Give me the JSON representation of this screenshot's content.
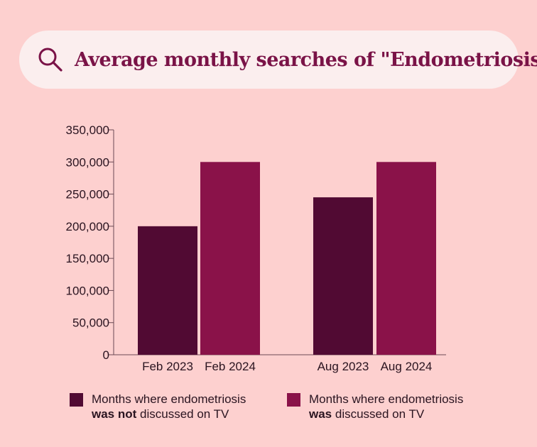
{
  "search": {
    "title": "Average monthly searches of \"Endometriosis\"",
    "icon": "search-icon"
  },
  "chart_data": {
    "type": "bar",
    "title": "Average monthly searches of \"Endometriosis\"",
    "xlabel": "",
    "ylabel": "",
    "ylim": [
      0,
      350000
    ],
    "yticks": [
      0,
      50000,
      100000,
      150000,
      200000,
      250000,
      300000,
      350000
    ],
    "ytick_labels": [
      "0",
      "50,000",
      "100,000",
      "150,000",
      "200,000",
      "250,000",
      "300,000",
      "350,000"
    ],
    "grid": false,
    "legend_position": "bottom",
    "bars": [
      {
        "label": "Feb 2023",
        "value": 200000,
        "series": 0
      },
      {
        "label": "Feb 2024",
        "value": 300000,
        "series": 1
      },
      {
        "label": "Aug 2023",
        "value": 245000,
        "series": 0
      },
      {
        "label": "Aug 2024",
        "value": 300000,
        "series": 1
      }
    ],
    "series": [
      {
        "color": "#510a33",
        "legend_line1": "Months where endometriosis",
        "legend_bold": "was not",
        "legend_rest": " discussed on TV"
      },
      {
        "color": "#8a1249",
        "legend_line1": "Months where endometriosis",
        "legend_bold": "was",
        "legend_rest": " discussed on TV"
      }
    ]
  }
}
